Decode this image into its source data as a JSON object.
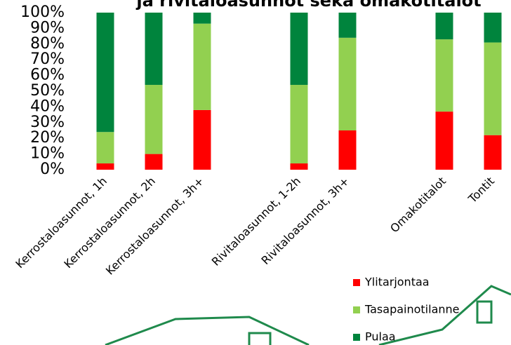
{
  "chart_data": {
    "type": "stacked_bar",
    "title": "ja rivitaloasunnot sekä omakotitalot",
    "categories": [
      "Kerrostaloasunnot, 1h",
      "Kerrostaloasunnot, 2h",
      "Kerrostaloasunnot, 3h+",
      null,
      "Rivitaloasunnot, 1-2h",
      "Rivitaloasunnot, 3h+",
      null,
      "Omakotitalot",
      "Tontit"
    ],
    "series": [
      {
        "name": "Ylitarjontaa",
        "color": "#ff0000",
        "values": [
          4,
          10,
          38,
          null,
          4,
          25,
          null,
          37,
          22
        ]
      },
      {
        "name": "Tasapainotilanne",
        "color": "#92d050",
        "values": [
          20,
          44,
          55,
          null,
          50,
          59,
          null,
          46,
          59
        ]
      },
      {
        "name": "Pulaa",
        "color": "#00843d",
        "values": [
          76,
          46,
          7,
          null,
          46,
          16,
          null,
          17,
          19
        ]
      }
    ],
    "ylim": [
      0,
      100
    ],
    "yticks": [
      {
        "value": 0,
        "label": "0%"
      },
      {
        "value": 10,
        "label": "10%"
      },
      {
        "value": 20,
        "label": "20%"
      },
      {
        "value": 30,
        "label": "30%"
      },
      {
        "value": 40,
        "label": "40%"
      },
      {
        "value": 50,
        "label": "50%"
      },
      {
        "value": 60,
        "label": "60%"
      },
      {
        "value": 70,
        "label": "70%"
      },
      {
        "value": 80,
        "label": "80%"
      },
      {
        "value": 90,
        "label": "90%"
      },
      {
        "value": 100,
        "label": "100%"
      }
    ]
  }
}
